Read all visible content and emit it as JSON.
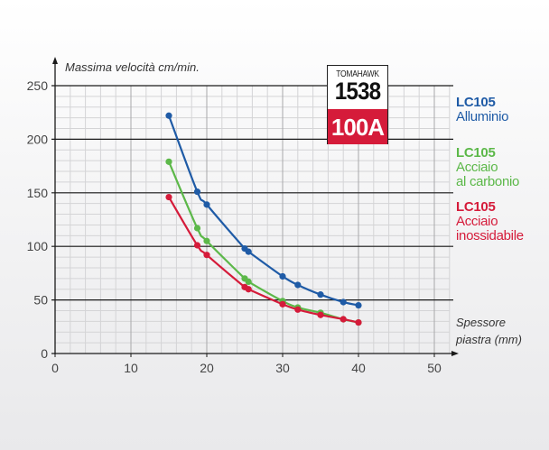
{
  "badge": {
    "brand": "TOMAHAWK",
    "model": "1538",
    "amperage": "100A",
    "amperage_bg": "#d51b3a"
  },
  "legend": [
    {
      "code": "LC105",
      "material_line1": "Alluminio",
      "material_line2": "",
      "color": "#1f5ba6"
    },
    {
      "code": "LC105",
      "material_line1": "Acciaio",
      "material_line2": "al carbonio",
      "color": "#5cb849"
    },
    {
      "code": "LC105",
      "material_line1": "Acciaio",
      "material_line2": "inossidabile",
      "color": "#d51b3a"
    }
  ],
  "chart_data": {
    "type": "line",
    "title": "",
    "ylabel": "Massima velocità cm/min.",
    "xlabel": "Spessore piastra (mm)",
    "xlim": [
      0,
      50
    ],
    "ylim": [
      0,
      250
    ],
    "xticks": [
      0,
      10,
      20,
      30,
      40,
      50
    ],
    "yticks": [
      0,
      50,
      100,
      150,
      200,
      250
    ],
    "grid": true,
    "legend_position": "right",
    "series": [
      {
        "name": "LC105 Alluminio",
        "color": "#1f5ba6",
        "x": [
          15,
          18.75,
          20,
          25,
          25.5,
          30,
          32,
          35,
          38,
          40
        ],
        "y": [
          222,
          151,
          139,
          98,
          95,
          72,
          64,
          55,
          48,
          45
        ]
      },
      {
        "name": "LC105 Acciaio al carbonio",
        "color": "#5cb849",
        "x": [
          15,
          18.75,
          20,
          25,
          25.5,
          30,
          32,
          35,
          38,
          40
        ],
        "y": [
          179,
          117,
          105,
          70,
          67,
          49,
          43,
          38,
          32,
          29
        ]
      },
      {
        "name": "LC105 Acciaio inossidabile",
        "color": "#d51b3a",
        "x": [
          15,
          18.75,
          20,
          25,
          25.5,
          30,
          32,
          35,
          38,
          40
        ],
        "y": [
          146,
          101,
          92,
          62,
          60,
          46,
          41,
          36,
          32,
          29
        ]
      }
    ]
  }
}
